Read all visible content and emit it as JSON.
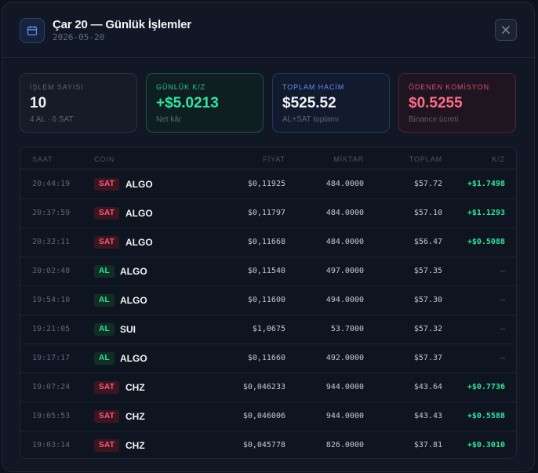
{
  "modal": {
    "title": "Çar 20 — Günlük İşlemler",
    "date": "2026-05-20",
    "icon": "calendar-icon",
    "close_icon": "close-icon"
  },
  "cards": [
    {
      "label": "İŞLEM SAYISI",
      "value": "10",
      "hint": "4 AL · 6 SAT"
    },
    {
      "label": "GÜNLÜK K/Z",
      "value": "+$5.0213",
      "hint": "Net kâr"
    },
    {
      "label": "TOPLAM HACİM",
      "value": "$525.52",
      "hint": "AL+SAT toplamı"
    },
    {
      "label": "ÖDENEN KOMİSYON",
      "value": "$0.5255",
      "hint": "Binance ücreti"
    }
  ],
  "table": {
    "headers": {
      "time": "SAAT",
      "coin": "COIN",
      "price": "FİYAT",
      "qty": "MİKTAR",
      "total": "TOPLAM",
      "pnl": "K/Z"
    },
    "rows": [
      {
        "time": "20:44:19",
        "side": "SAT",
        "coin": "ALGO",
        "price": "$0,11925",
        "qty": "484.0000",
        "total": "$57.72",
        "pnl": "+$1.7498"
      },
      {
        "time": "20:37:59",
        "side": "SAT",
        "coin": "ALGO",
        "price": "$0,11797",
        "qty": "484.0000",
        "total": "$57.10",
        "pnl": "+$1.1293"
      },
      {
        "time": "20:32:11",
        "side": "SAT",
        "coin": "ALGO",
        "price": "$0,11668",
        "qty": "484.0000",
        "total": "$56.47",
        "pnl": "+$0.5088"
      },
      {
        "time": "20:02:48",
        "side": "AL",
        "coin": "ALGO",
        "price": "$0,11540",
        "qty": "497.0000",
        "total": "$57.35",
        "pnl": "—"
      },
      {
        "time": "19:54:10",
        "side": "AL",
        "coin": "ALGO",
        "price": "$0,11600",
        "qty": "494.0000",
        "total": "$57.30",
        "pnl": "—"
      },
      {
        "time": "19:21:05",
        "side": "AL",
        "coin": "SUI",
        "price": "$1,0675",
        "qty": "53.7000",
        "total": "$57.32",
        "pnl": "—"
      },
      {
        "time": "19:17:17",
        "side": "AL",
        "coin": "ALGO",
        "price": "$0,11660",
        "qty": "492.0000",
        "total": "$57.37",
        "pnl": "—"
      },
      {
        "time": "19:07:24",
        "side": "SAT",
        "coin": "CHZ",
        "price": "$0,046233",
        "qty": "944.0000",
        "total": "$43.64",
        "pnl": "+$0.7736"
      },
      {
        "time": "19:05:53",
        "side": "SAT",
        "coin": "CHZ",
        "price": "$0,046006",
        "qty": "944.0000",
        "total": "$43.43",
        "pnl": "+$0.5588"
      },
      {
        "time": "19:03:14",
        "side": "SAT",
        "coin": "CHZ",
        "price": "$0,045778",
        "qty": "826.0000",
        "total": "$37.81",
        "pnl": "+$0.3010"
      }
    ]
  },
  "colors": {
    "accent": "#3d6fd8",
    "profit": "#2ee6a0",
    "loss": "#ff5a78"
  }
}
